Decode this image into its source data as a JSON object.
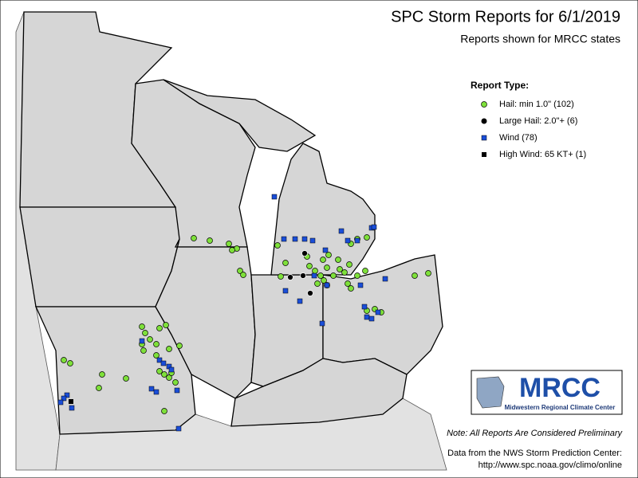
{
  "header": {
    "title": "SPC Storm Reports for 6/1/2019",
    "subtitle": "Reports shown for MRCC states"
  },
  "legend": {
    "title": "Report Type:",
    "items": [
      {
        "label": "Hail: min 1.0\" (102)"
      },
      {
        "label": "Large Hail: 2.0\"+ (6)"
      },
      {
        "label": "Wind (78)"
      },
      {
        "label": "High Wind: 65 KT+ (1)"
      }
    ]
  },
  "logo": {
    "name": "MRCC",
    "subtitle": "Midwestern Regional Climate Center"
  },
  "note": "Note: All Reports Are Considered Preliminary",
  "source": {
    "line1": "Data from the NWS Storm Prediction Center:",
    "line2": "http://www.spc.noaa.gov/climo/online"
  }
}
